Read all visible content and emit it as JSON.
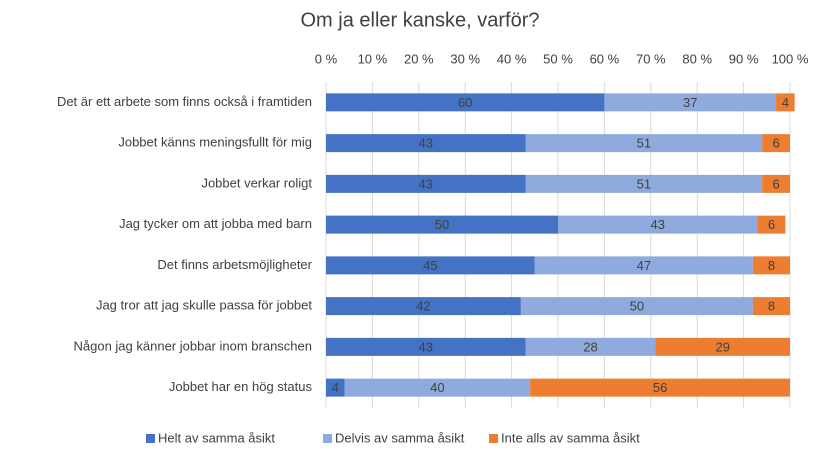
{
  "chart_data": {
    "type": "stacked-barh",
    "title": "Om ja eller kanske, varför?",
    "categories": [
      "Det är ett arbete som finns också i framtiden",
      "Jobbet känns meningsfullt för mig",
      "Jobbet verkar roligt",
      "Jag tycker om att jobba med barn",
      "Det finns arbetsmöjligheter",
      "Jag tror att jag skulle passa för jobbet",
      "Någon jag känner jobbar inom branschen",
      "Jobbet har en hög status"
    ],
    "series": [
      {
        "name": "Helt av samma åsikt",
        "color": "#4472c4",
        "values": [
          60,
          43,
          43,
          50,
          45,
          42,
          43,
          4
        ]
      },
      {
        "name": "Delvis av samma åsikt",
        "color": "#8faadc",
        "values": [
          37,
          51,
          51,
          43,
          47,
          50,
          28,
          40
        ]
      },
      {
        "name": "Inte alls av samma åsikt",
        "color": "#ed7d31",
        "values": [
          4,
          6,
          6,
          6,
          8,
          8,
          29,
          56
        ]
      }
    ],
    "xlim": [
      0,
      100
    ],
    "xticks": [
      {
        "value": 0,
        "label": "0 %"
      },
      {
        "value": 10,
        "label": "10 %"
      },
      {
        "value": 20,
        "label": "20 %"
      },
      {
        "value": 30,
        "label": "30 %"
      },
      {
        "value": 40,
        "label": "40 %"
      },
      {
        "value": 50,
        "label": "50 %"
      },
      {
        "value": 60,
        "label": "60 %"
      },
      {
        "value": 70,
        "label": "70 %"
      },
      {
        "value": 80,
        "label": "80 %"
      },
      {
        "value": 90,
        "label": "90 %"
      },
      {
        "value": 100,
        "label": "100 %"
      }
    ],
    "grid": true,
    "legend": "bottom"
  }
}
